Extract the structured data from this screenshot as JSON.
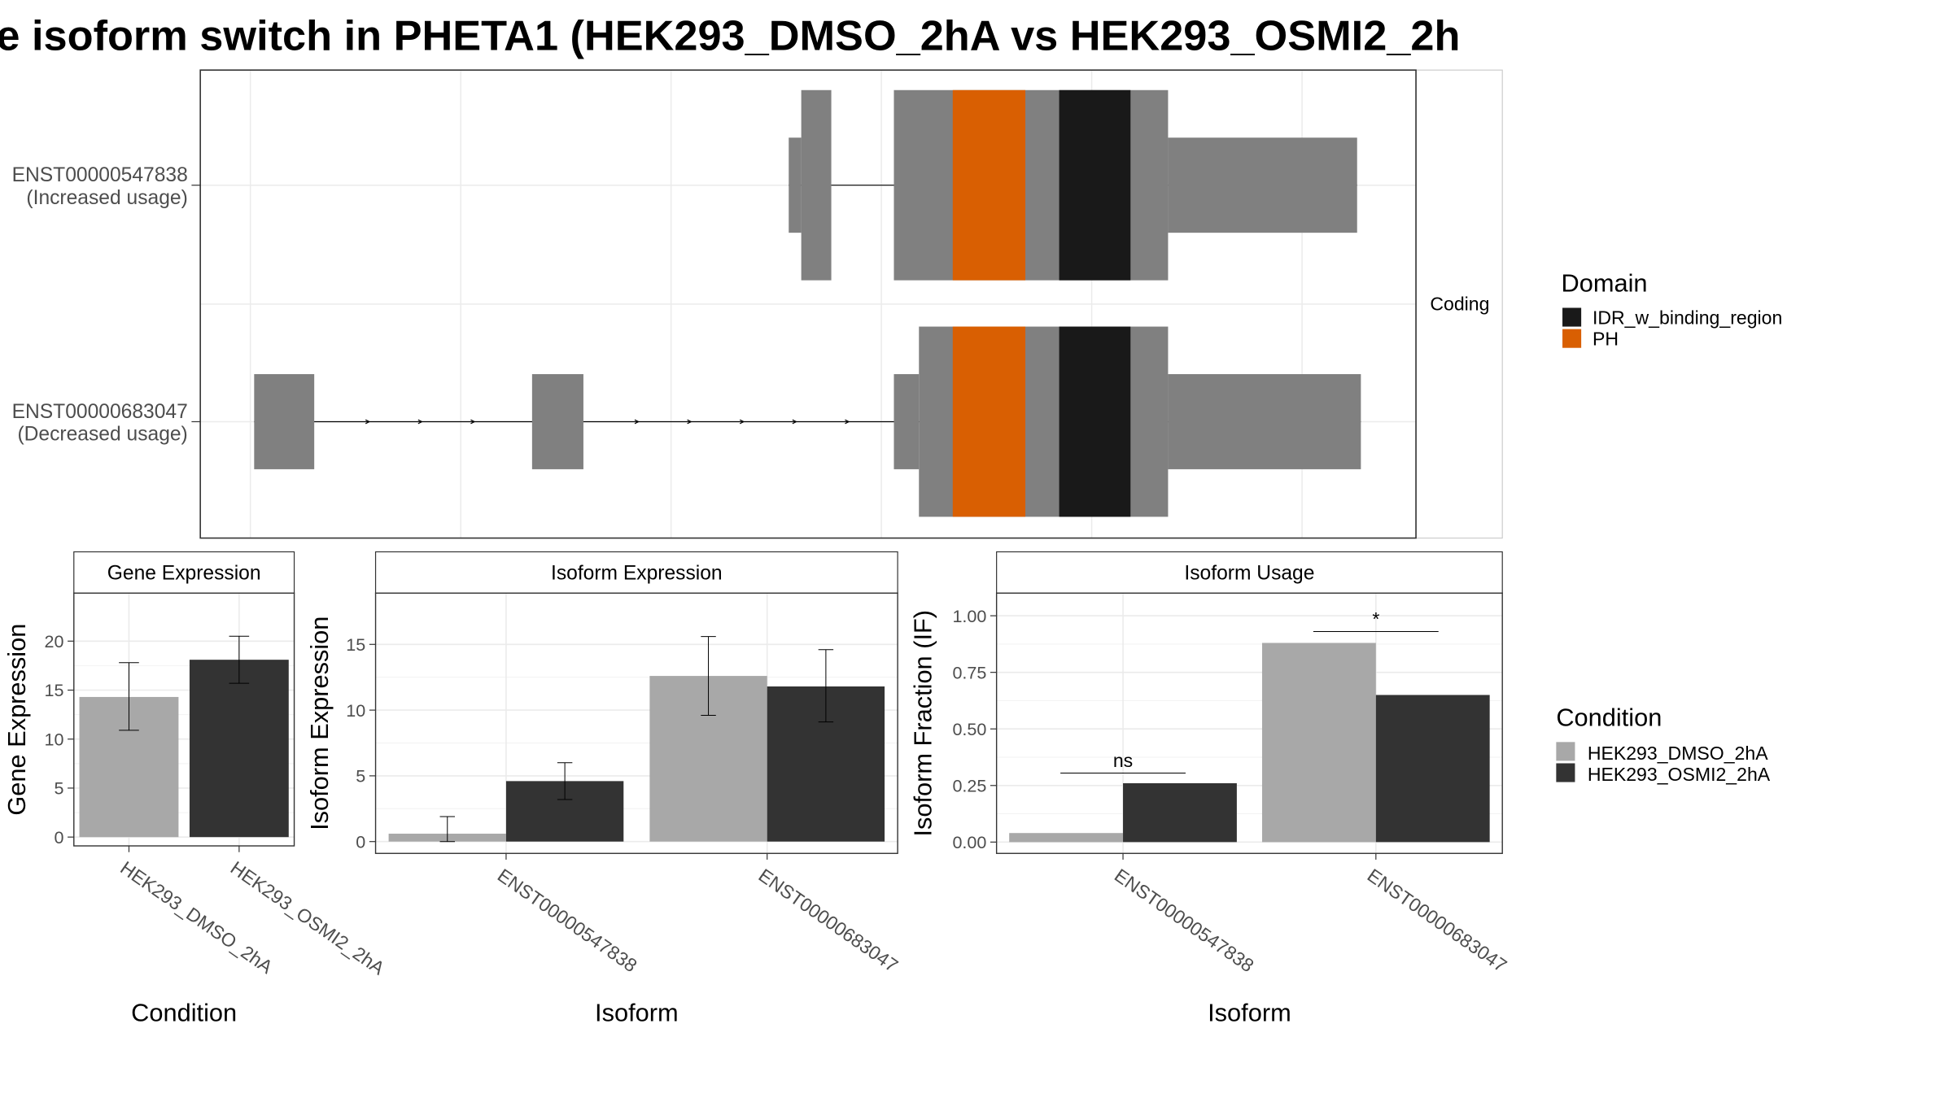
{
  "title": "e isoform switch in PHETA1 (HEK293_DMSO_2hA vs HEK293_OSMI2_2h",
  "colors": {
    "exon": "#808080",
    "idr": "#191919",
    "ph": "#d95f02",
    "dmso": "#a8a8a8",
    "osmi2": "#333333",
    "grid": "#ebebeb",
    "frame": "#333333"
  },
  "chart_data": [
    {
      "type": "gene-structure",
      "title": "",
      "strip_label": "Coding",
      "rows": [
        {
          "id": "ENST00000547838",
          "label": "ENST00000547838",
          "sublabel": "(Increased usage)",
          "exons": [
            [
              640,
              664
            ],
            [
              714,
              933
            ]
          ],
          "utr_5": [
            [
              630,
              640
            ],
            [
              933,
              1084
            ]
          ],
          "domains": [
            {
              "name": "PH",
              "start": 761,
              "end": 819
            },
            {
              "name": "IDR_w_binding_region",
              "start": 846,
              "end": 903
            }
          ]
        },
        {
          "id": "ENST00000683047",
          "label": "ENST00000683047",
          "sublabel": "(Decreased usage)",
          "exons": [
            [
              734,
              933
            ]
          ],
          "utr_5": [
            [
              203,
              251
            ],
            [
              425,
              466
            ],
            [
              714,
              734
            ],
            [
              933,
              1087
            ]
          ],
          "domains": [
            {
              "name": "PH",
              "start": 761,
              "end": 819
            },
            {
              "name": "IDR_w_binding_region",
              "start": 846,
              "end": 903
            }
          ]
        }
      ],
      "legend": {
        "title": "Domain",
        "entries": [
          "IDR_w_binding_region",
          "PH"
        ]
      }
    },
    {
      "type": "bar",
      "title": "Gene Expression",
      "xlabel": "Condition",
      "ylabel": "Gene Expression",
      "categories": [
        "HEK293_DMSO_2hA",
        "HEK293_OSMI2_2hA"
      ],
      "values": [
        14.3,
        18.1
      ],
      "errors": [
        [
          10.9,
          17.8
        ],
        [
          15.7,
          20.5
        ]
      ],
      "yticks": [
        0,
        5,
        10,
        15,
        20
      ],
      "ylim": [
        -0.9,
        24.9
      ]
    },
    {
      "type": "bar",
      "title": "Isoform Expression",
      "xlabel": "Isoform",
      "ylabel": "Isoform Expression",
      "categories": [
        "ENST00000547838",
        "ENST00000683047"
      ],
      "series": [
        {
          "name": "HEK293_DMSO_2hA",
          "values": [
            0.6,
            12.6
          ],
          "errors": [
            [
              0.0,
              1.9
            ],
            [
              9.6,
              15.6
            ]
          ]
        },
        {
          "name": "HEK293_OSMI2_2hA",
          "values": [
            4.6,
            11.8
          ],
          "errors": [
            [
              3.2,
              6.0
            ],
            [
              9.1,
              14.6
            ]
          ]
        }
      ],
      "yticks": [
        0,
        5,
        10,
        15
      ],
      "ylim": [
        -0.9,
        18.9
      ]
    },
    {
      "type": "bar",
      "title": "Isoform Usage",
      "xlabel": "Isoform",
      "ylabel": "Isoform Fraction (IF)",
      "categories": [
        "ENST00000547838",
        "ENST00000683047"
      ],
      "series": [
        {
          "name": "HEK293_DMSO_2hA",
          "values": [
            0.04,
            0.88
          ]
        },
        {
          "name": "HEK293_OSMI2_2hA",
          "values": [
            0.26,
            0.65
          ]
        }
      ],
      "significance": [
        "ns",
        "*"
      ],
      "sig_y": [
        0.305,
        0.93
      ],
      "yticks": [
        0.0,
        0.25,
        0.5,
        0.75,
        1.0
      ],
      "ytick_labels": [
        "0.00",
        "0.25",
        "0.50",
        "0.75",
        "1.00"
      ],
      "ylim": [
        -0.05,
        1.1
      ]
    }
  ],
  "condition_legend": {
    "title": "Condition",
    "entries": [
      "HEK293_DMSO_2hA",
      "HEK293_OSMI2_2hA"
    ]
  }
}
